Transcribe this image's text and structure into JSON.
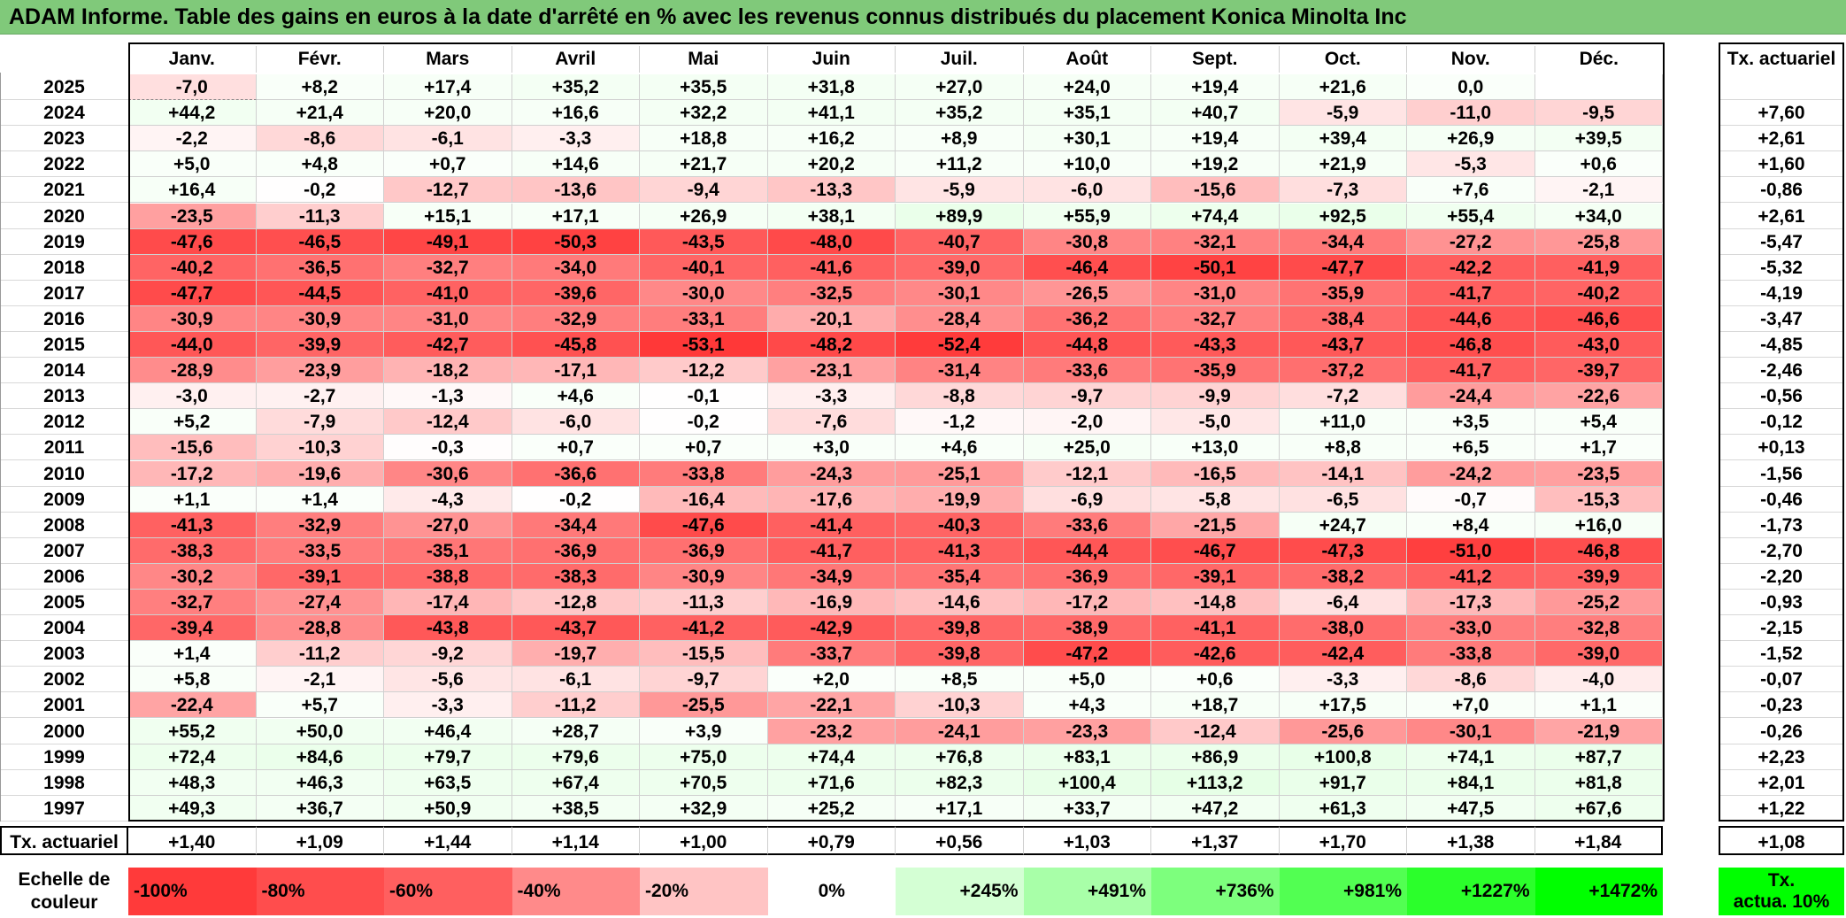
{
  "title": "ADAM Informe. Table des gains en euros à la date d'arrêté en % avec les revenus connus distribués du placement Konica Minolta Inc",
  "chart_data": {
    "type": "heatmap",
    "title": "ADAM Informe. Table des gains en euros à la date d'arrêté en % avec les revenus connus distribués du placement Konica Minolta Inc",
    "columns": [
      "Janv.",
      "Févr.",
      "Mars",
      "Avril",
      "Mai",
      "Juin",
      "Juil.",
      "Août",
      "Sept.",
      "Oct.",
      "Nov.",
      "Déc."
    ],
    "annual_header": "Tx. actuariel",
    "rows": [
      {
        "year": "2025",
        "values": [
          "-7,0",
          "+8,2",
          "+17,4",
          "+35,2",
          "+35,5",
          "+31,8",
          "+27,0",
          "+24,0",
          "+19,4",
          "+21,6",
          "0,0",
          ""
        ],
        "annual": ""
      },
      {
        "year": "2024",
        "values": [
          "+44,2",
          "+21,4",
          "+20,0",
          "+16,6",
          "+32,2",
          "+41,1",
          "+35,2",
          "+35,1",
          "+40,7",
          "-5,9",
          "-11,0",
          "-9,5"
        ],
        "annual": "+7,60"
      },
      {
        "year": "2023",
        "values": [
          "-2,2",
          "-8,6",
          "-6,1",
          "-3,3",
          "+18,8",
          "+16,2",
          "+8,9",
          "+30,1",
          "+19,4",
          "+39,4",
          "+26,9",
          "+39,5"
        ],
        "annual": "+2,61"
      },
      {
        "year": "2022",
        "values": [
          "+5,0",
          "+4,8",
          "+0,7",
          "+14,6",
          "+21,7",
          "+20,2",
          "+11,2",
          "+10,0",
          "+19,2",
          "+21,9",
          "-5,3",
          "+0,6"
        ],
        "annual": "+1,60"
      },
      {
        "year": "2021",
        "values": [
          "+16,4",
          "-0,2",
          "-12,7",
          "-13,6",
          "-9,4",
          "-13,3",
          "-5,9",
          "-6,0",
          "-15,6",
          "-7,3",
          "+7,6",
          "-2,1"
        ],
        "annual": "-0,86"
      },
      {
        "year": "2020",
        "values": [
          "-23,5",
          "-11,3",
          "+15,1",
          "+17,1",
          "+26,9",
          "+38,1",
          "+89,9",
          "+55,9",
          "+74,4",
          "+92,5",
          "+55,4",
          "+34,0"
        ],
        "annual": "+2,61"
      },
      {
        "year": "2019",
        "values": [
          "-47,6",
          "-46,5",
          "-49,1",
          "-50,3",
          "-43,5",
          "-48,0",
          "-40,7",
          "-30,8",
          "-32,1",
          "-34,4",
          "-27,2",
          "-25,8"
        ],
        "annual": "-5,47"
      },
      {
        "year": "2018",
        "values": [
          "-40,2",
          "-36,5",
          "-32,7",
          "-34,0",
          "-40,1",
          "-41,6",
          "-39,0",
          "-46,4",
          "-50,1",
          "-47,7",
          "-42,2",
          "-41,9"
        ],
        "annual": "-5,32"
      },
      {
        "year": "2017",
        "values": [
          "-47,7",
          "-44,5",
          "-41,0",
          "-39,6",
          "-30,0",
          "-32,5",
          "-30,1",
          "-26,5",
          "-31,0",
          "-35,9",
          "-41,7",
          "-40,2"
        ],
        "annual": "-4,19"
      },
      {
        "year": "2016",
        "values": [
          "-30,9",
          "-30,9",
          "-31,0",
          "-32,9",
          "-33,1",
          "-20,1",
          "-28,4",
          "-36,2",
          "-32,7",
          "-38,4",
          "-44,6",
          "-46,6"
        ],
        "annual": "-3,47"
      },
      {
        "year": "2015",
        "values": [
          "-44,0",
          "-39,9",
          "-42,7",
          "-45,8",
          "-53,1",
          "-48,2",
          "-52,4",
          "-44,8",
          "-43,3",
          "-43,7",
          "-46,8",
          "-43,0"
        ],
        "annual": "-4,85"
      },
      {
        "year": "2014",
        "values": [
          "-28,9",
          "-23,9",
          "-18,2",
          "-17,1",
          "-12,2",
          "-23,1",
          "-31,4",
          "-33,6",
          "-35,9",
          "-37,2",
          "-41,7",
          "-39,7"
        ],
        "annual": "-2,46"
      },
      {
        "year": "2013",
        "values": [
          "-3,0",
          "-2,7",
          "-1,3",
          "+4,6",
          "-0,1",
          "-3,3",
          "-8,8",
          "-9,7",
          "-9,9",
          "-7,2",
          "-24,4",
          "-22,6"
        ],
        "annual": "-0,56"
      },
      {
        "year": "2012",
        "values": [
          "+5,2",
          "-7,9",
          "-12,4",
          "-6,0",
          "-0,2",
          "-7,6",
          "-1,2",
          "-2,0",
          "-5,0",
          "+11,0",
          "+3,5",
          "+5,4"
        ],
        "annual": "-0,12"
      },
      {
        "year": "2011",
        "values": [
          "-15,6",
          "-10,3",
          "-0,3",
          "+0,7",
          "+0,7",
          "+3,0",
          "+4,6",
          "+25,0",
          "+13,0",
          "+8,8",
          "+6,5",
          "+1,7"
        ],
        "annual": "+0,13"
      },
      {
        "year": "2010",
        "values": [
          "-17,2",
          "-19,6",
          "-30,6",
          "-36,6",
          "-33,8",
          "-24,3",
          "-25,1",
          "-12,1",
          "-16,5",
          "-14,1",
          "-24,2",
          "-23,5"
        ],
        "annual": "-1,56"
      },
      {
        "year": "2009",
        "values": [
          "+1,1",
          "+1,4",
          "-4,3",
          "-0,2",
          "-16,4",
          "-17,6",
          "-19,9",
          "-6,9",
          "-5,8",
          "-6,5",
          "-0,7",
          "-15,3"
        ],
        "annual": "-0,46"
      },
      {
        "year": "2008",
        "values": [
          "-41,3",
          "-32,9",
          "-27,0",
          "-34,4",
          "-47,6",
          "-41,4",
          "-40,3",
          "-33,6",
          "-21,5",
          "+24,7",
          "+8,4",
          "+16,0"
        ],
        "annual": "-1,73"
      },
      {
        "year": "2007",
        "values": [
          "-38,3",
          "-33,5",
          "-35,1",
          "-36,9",
          "-36,9",
          "-41,7",
          "-41,3",
          "-44,4",
          "-46,7",
          "-47,3",
          "-51,0",
          "-46,8"
        ],
        "annual": "-2,70"
      },
      {
        "year": "2006",
        "values": [
          "-30,2",
          "-39,1",
          "-38,8",
          "-38,3",
          "-30,9",
          "-34,9",
          "-35,4",
          "-36,9",
          "-39,1",
          "-38,2",
          "-41,2",
          "-39,9"
        ],
        "annual": "-2,20"
      },
      {
        "year": "2005",
        "values": [
          "-32,7",
          "-27,4",
          "-17,4",
          "-12,8",
          "-11,3",
          "-16,9",
          "-14,6",
          "-17,2",
          "-14,8",
          "-6,4",
          "-17,3",
          "-25,2"
        ],
        "annual": "-0,93"
      },
      {
        "year": "2004",
        "values": [
          "-39,4",
          "-28,8",
          "-43,8",
          "-43,7",
          "-41,2",
          "-42,9",
          "-39,8",
          "-38,9",
          "-41,1",
          "-38,0",
          "-33,0",
          "-32,8"
        ],
        "annual": "-2,15"
      },
      {
        "year": "2003",
        "values": [
          "+1,4",
          "-11,2",
          "-9,2",
          "-19,7",
          "-15,5",
          "-33,7",
          "-39,8",
          "-47,2",
          "-42,6",
          "-42,4",
          "-33,8",
          "-39,0"
        ],
        "annual": "-1,52"
      },
      {
        "year": "2002",
        "values": [
          "+5,8",
          "-2,1",
          "-5,6",
          "-6,1",
          "-9,7",
          "+2,0",
          "+8,5",
          "+5,0",
          "+0,6",
          "-3,3",
          "-8,6",
          "-4,0"
        ],
        "annual": "-0,07"
      },
      {
        "year": "2001",
        "values": [
          "-22,4",
          "+5,7",
          "-3,3",
          "-11,2",
          "-25,5",
          "-22,1",
          "-10,3",
          "+4,3",
          "+18,7",
          "+17,5",
          "+7,0",
          "+1,1"
        ],
        "annual": "-0,23"
      },
      {
        "year": "2000",
        "values": [
          "+55,2",
          "+50,0",
          "+46,4",
          "+28,7",
          "+3,9",
          "-23,2",
          "-24,1",
          "-23,3",
          "-12,4",
          "-25,6",
          "-30,1",
          "-21,9"
        ],
        "annual": "-0,26"
      },
      {
        "year": "1999",
        "values": [
          "+72,4",
          "+84,6",
          "+79,7",
          "+79,6",
          "+75,0",
          "+74,4",
          "+76,8",
          "+83,1",
          "+86,9",
          "+100,8",
          "+74,1",
          "+87,7"
        ],
        "annual": "+2,23"
      },
      {
        "year": "1998",
        "values": [
          "+48,3",
          "+46,3",
          "+63,5",
          "+67,4",
          "+70,5",
          "+71,6",
          "+82,3",
          "+100,4",
          "+113,2",
          "+91,7",
          "+84,1",
          "+81,8"
        ],
        "annual": "+2,01"
      },
      {
        "year": "1997",
        "values": [
          "+49,3",
          "+36,7",
          "+50,9",
          "+38,5",
          "+32,9",
          "+25,2",
          "+17,1",
          "+33,7",
          "+47,2",
          "+61,3",
          "+47,5",
          "+67,6"
        ],
        "annual": "+1,22"
      }
    ],
    "footer": {
      "label": "Tx. actuariel",
      "values": [
        "+1,40",
        "+1,09",
        "+1,44",
        "+1,14",
        "+1,00",
        "+0,79",
        "+0,56",
        "+1,03",
        "+1,37",
        "+1,70",
        "+1,38",
        "+1,84"
      ],
      "annual": "+1,08"
    },
    "legend": {
      "label_line1": "Echelle de",
      "label_line2": "couleur",
      "stops": [
        {
          "label": "-100%",
          "color": "#ff3a3a"
        },
        {
          "label": "-80%",
          "color": "#ff4d4d"
        },
        {
          "label": "-60%",
          "color": "#ff5f5f"
        },
        {
          "label": "-40%",
          "color": "#ff8a8a"
        },
        {
          "label": "-20%",
          "color": "#ffc4c4"
        },
        {
          "label": "0%",
          "color": "#ffffff"
        },
        {
          "label": "+245%",
          "color": "#d4ffd4"
        },
        {
          "label": "+491%",
          "color": "#a8ffa8"
        },
        {
          "label": "+736%",
          "color": "#7dff7d"
        },
        {
          "label": "+981%",
          "color": "#52ff52"
        },
        {
          "label": "+1227%",
          "color": "#2bff2b"
        },
        {
          "label": "+1472%",
          "color": "#00ff00"
        }
      ],
      "annual_line1": "Tx.",
      "annual_line2": "actua. 10%",
      "annual_color": "#00ff00"
    }
  }
}
